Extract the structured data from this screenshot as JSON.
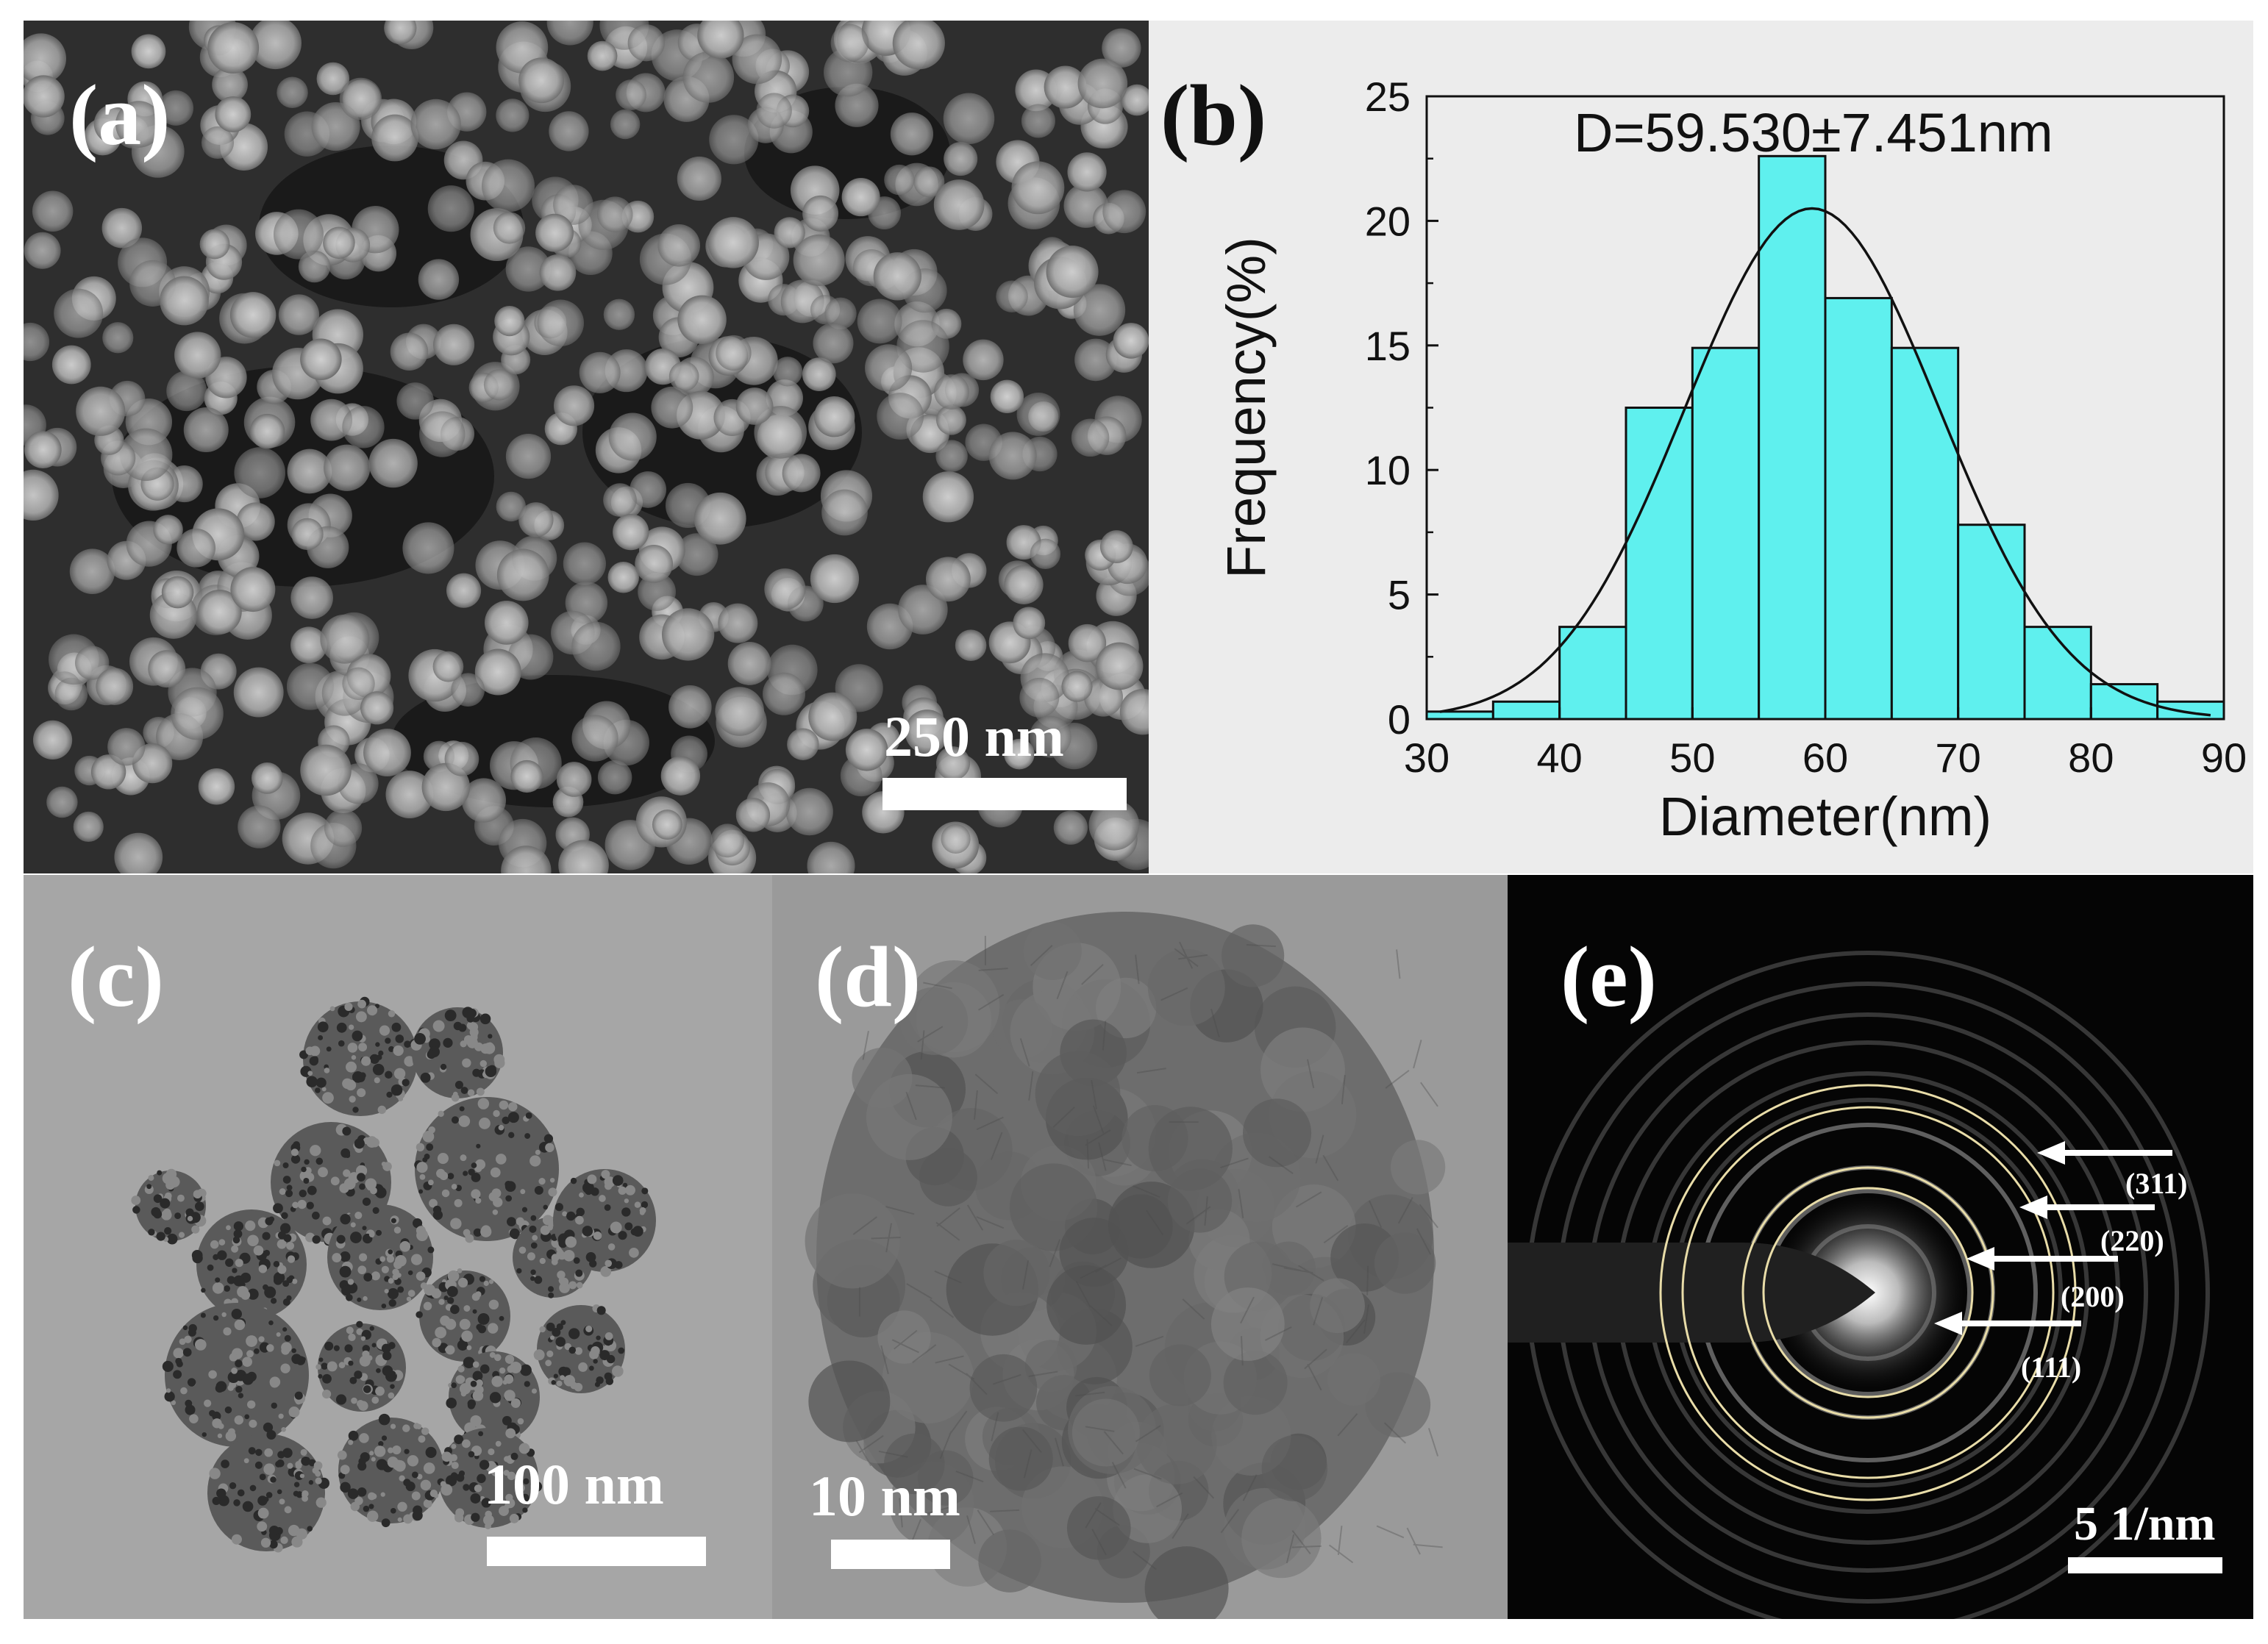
{
  "panels": {
    "a": {
      "label": "(a)",
      "scale_bar": "250 nm"
    },
    "b": {
      "label": "(b)"
    },
    "c": {
      "label": "(c)",
      "scale_bar": "100 nm"
    },
    "d": {
      "label": "(d)",
      "scale_bar": "10 nm"
    },
    "e": {
      "label": "(e)",
      "scale_bar": "5 1/nm",
      "rings": [
        "(311)",
        "(220)",
        "(200)",
        "(111)"
      ]
    }
  },
  "chart_data": {
    "type": "bar",
    "title": "",
    "annotation": "D=59.530±7.451nm",
    "xlabel": "Diameter(nm)",
    "ylabel": "Frequency(%)",
    "xlim": [
      30,
      90
    ],
    "ylim": [
      0,
      25
    ],
    "xticks": [
      30,
      40,
      50,
      60,
      70,
      80,
      90
    ],
    "yticks": [
      0,
      5,
      10,
      15,
      20,
      25
    ],
    "bin_width": 5,
    "bin_centers": [
      32.5,
      37.5,
      42.5,
      47.5,
      52.5,
      57.5,
      62.5,
      67.5,
      72.5,
      77.5,
      82.5,
      87.5
    ],
    "values": [
      0.3,
      0.7,
      3.7,
      12.5,
      14.9,
      22.6,
      16.9,
      14.9,
      7.8,
      3.7,
      1.4,
      0.7
    ],
    "fit": {
      "type": "gaussian",
      "peak_x": 59,
      "peak_y": 20.5
    },
    "bar_color": "#5ff0ee",
    "grid": false,
    "legend": "none"
  }
}
